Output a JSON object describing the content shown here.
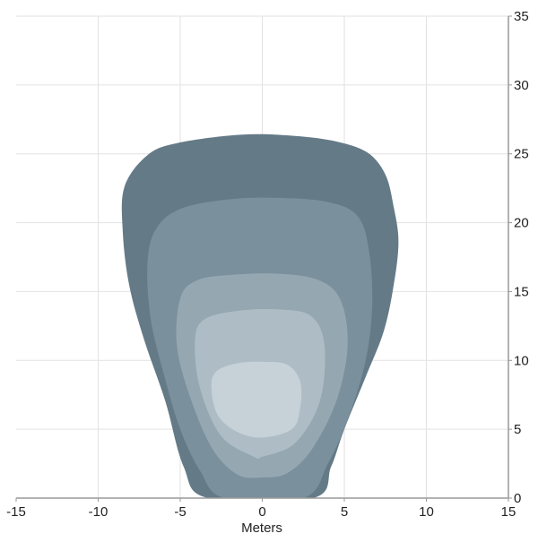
{
  "chart_data": {
    "type": "area",
    "title": "",
    "xlabel": "Meters",
    "ylabel": "",
    "xlim": [
      -15,
      15
    ],
    "ylim": [
      0,
      35
    ],
    "xticks": [
      -15,
      -10,
      -5,
      0,
      5,
      10,
      15
    ],
    "yticks": [
      0,
      5,
      10,
      15,
      20,
      25,
      30,
      35
    ],
    "y_axis_side": "right",
    "grid": true,
    "contours": [
      {
        "color": "#647a87",
        "points": [
          [
            -3.3,
            0
          ],
          [
            -4.8,
            2.3
          ],
          [
            -5.9,
            7
          ],
          [
            -7.2,
            11.5
          ],
          [
            -8.1,
            15.4
          ],
          [
            -8.5,
            19.3
          ],
          [
            -8.4,
            22.6
          ],
          [
            -7,
            24.9
          ],
          [
            -5.1,
            25.8
          ],
          [
            -1.2,
            26.4
          ],
          [
            2,
            26.3
          ],
          [
            4.5,
            25.9
          ],
          [
            6.4,
            25.1
          ],
          [
            7.5,
            23.5
          ],
          [
            8,
            21.2
          ],
          [
            8.3,
            18.6
          ],
          [
            8,
            15.4
          ],
          [
            7.4,
            12.1
          ],
          [
            6.3,
            8.8
          ],
          [
            5,
            5
          ],
          [
            4.2,
            2.3
          ],
          [
            3.1,
            0
          ]
        ]
      },
      {
        "color": "#7a909c",
        "points": [
          [
            -2.3,
            0
          ],
          [
            -3.8,
            2
          ],
          [
            -5,
            5
          ],
          [
            -6,
            9
          ],
          [
            -6.8,
            13
          ],
          [
            -7,
            17
          ],
          [
            -6.5,
            19.5
          ],
          [
            -5,
            21
          ],
          [
            -2,
            21.7
          ],
          [
            1,
            21.8
          ],
          [
            4,
            21.5
          ],
          [
            5.8,
            20.5
          ],
          [
            6.5,
            18
          ],
          [
            6.7,
            14
          ],
          [
            6.3,
            10
          ],
          [
            5.3,
            6
          ],
          [
            4,
            2.5
          ],
          [
            2.5,
            0
          ]
        ]
      },
      {
        "color": "#95a7b1",
        "points": [
          [
            -1.5,
            1.7
          ],
          [
            -3,
            3.5
          ],
          [
            -4.3,
            7
          ],
          [
            -5.2,
            11
          ],
          [
            -5,
            14.5
          ],
          [
            -4,
            15.8
          ],
          [
            -2,
            16.2
          ],
          [
            1,
            16.3
          ],
          [
            3.5,
            15.8
          ],
          [
            4.8,
            14.3
          ],
          [
            5.2,
            11
          ],
          [
            4.5,
            7
          ],
          [
            3,
            3.5
          ],
          [
            1.5,
            1.8
          ],
          [
            0,
            1.5
          ]
        ]
      },
      {
        "color": "#aebdc5",
        "points": [
          [
            -0.5,
            3
          ],
          [
            -2.5,
            4.5
          ],
          [
            -3.8,
            8
          ],
          [
            -4.1,
            11.5
          ],
          [
            -3.5,
            13
          ],
          [
            -1.5,
            13.6
          ],
          [
            1,
            13.7
          ],
          [
            3,
            13.2
          ],
          [
            3.8,
            11
          ],
          [
            3.5,
            7
          ],
          [
            2,
            4
          ],
          [
            0,
            3
          ]
        ]
      },
      {
        "color": "#c7d2d8",
        "points": [
          [
            -3.1,
            8
          ],
          [
            -2.8,
            9.2
          ],
          [
            -1.5,
            9.8
          ],
          [
            0,
            9.9
          ],
          [
            1.5,
            9.7
          ],
          [
            2.3,
            8.5
          ],
          [
            2.3,
            6.5
          ],
          [
            1.8,
            5
          ],
          [
            0,
            4.4
          ],
          [
            -1.5,
            4.8
          ],
          [
            -2.7,
            6
          ]
        ]
      }
    ]
  }
}
